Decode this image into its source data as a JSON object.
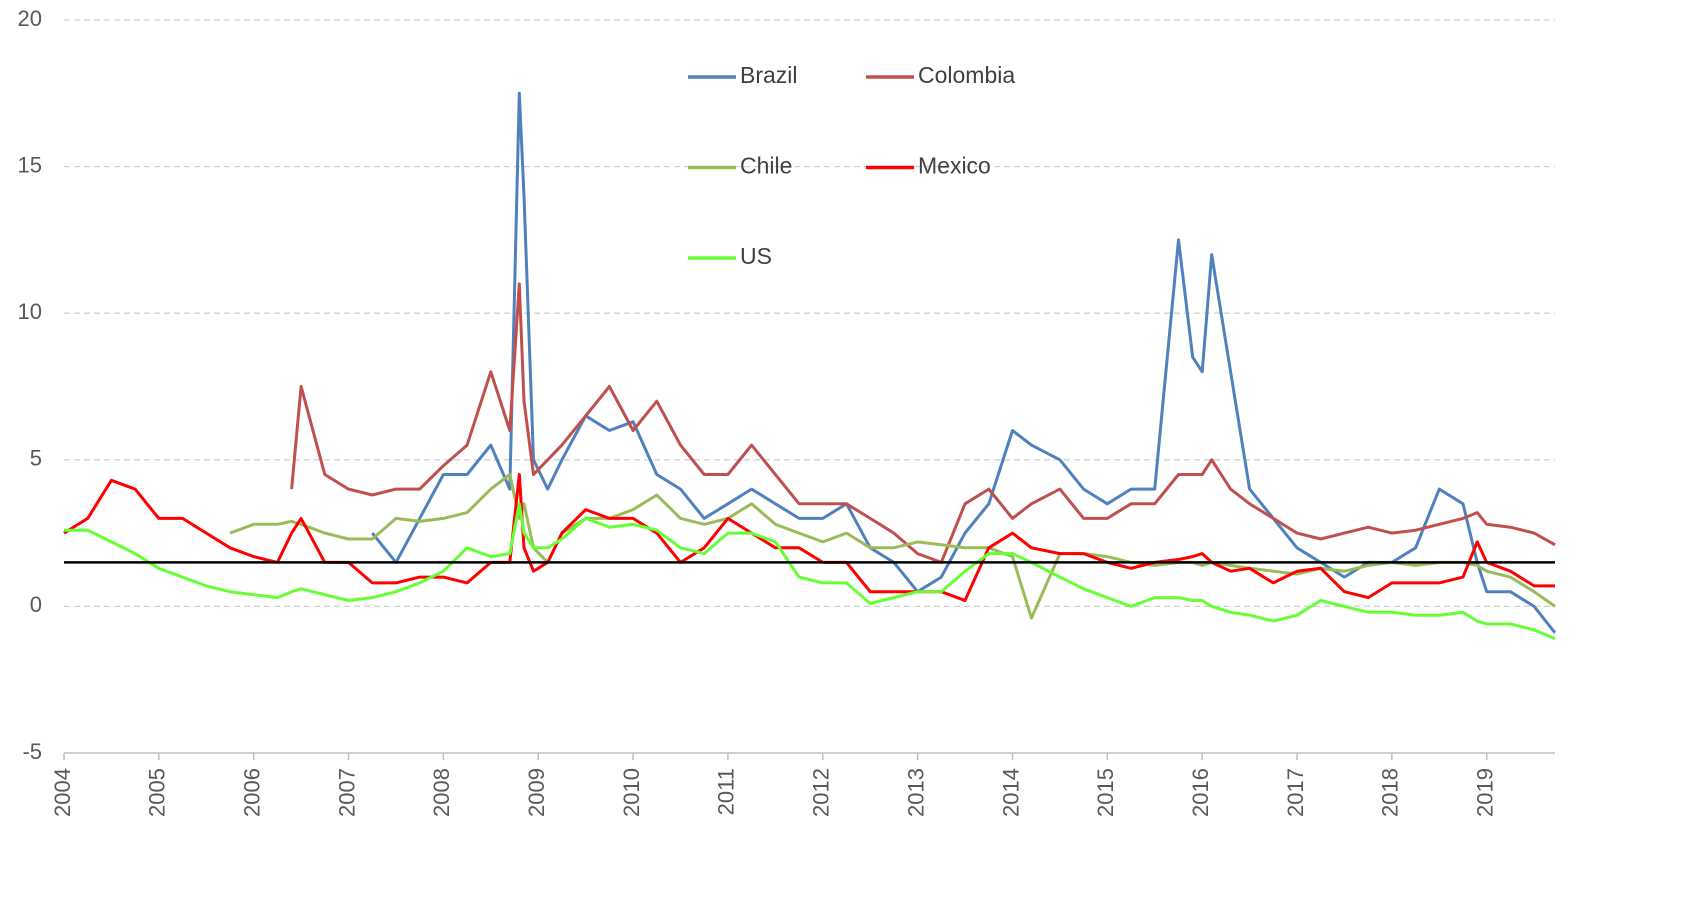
{
  "chart_data": {
    "type": "line",
    "x": [
      2004,
      2004.25,
      2004.5,
      2004.75,
      2005,
      2005.25,
      2005.5,
      2005.75,
      2006,
      2006.25,
      2006.4,
      2006.5,
      2006.75,
      2007,
      2007.25,
      2007.5,
      2007.75,
      2008,
      2008.25,
      2008.5,
      2008.7,
      2008.8,
      2008.85,
      2008.95,
      2009.1,
      2009.25,
      2009.5,
      2009.75,
      2010,
      2010.25,
      2010.5,
      2010.75,
      2011,
      2011.25,
      2011.5,
      2011.75,
      2012,
      2012.25,
      2012.5,
      2012.75,
      2013,
      2013.25,
      2013.5,
      2013.75,
      2014,
      2014.2,
      2014.5,
      2014.75,
      2015,
      2015.25,
      2015.5,
      2015.75,
      2015.9,
      2016,
      2016.1,
      2016.3,
      2016.5,
      2016.75,
      2017,
      2017.25,
      2017.5,
      2017.75,
      2018,
      2018.25,
      2018.5,
      2018.75,
      2018.9,
      2019,
      2019.25,
      2019.5,
      2019.72
    ],
    "series": [
      {
        "name": "Brazil",
        "color": "#4f81bd",
        "values": [
          null,
          null,
          null,
          null,
          null,
          null,
          null,
          null,
          null,
          null,
          null,
          null,
          null,
          null,
          2.5,
          1.5,
          3,
          4.5,
          4.5,
          5.5,
          4,
          17.5,
          14,
          5,
          4,
          5,
          6.5,
          6,
          6.3,
          4.5,
          4,
          3,
          3.5,
          4,
          3.5,
          3,
          3,
          3.5,
          2,
          1.5,
          0.5,
          1,
          2.5,
          3.5,
          6,
          5.5,
          5,
          4,
          3.5,
          4,
          4,
          12.5,
          8.5,
          8,
          12,
          8,
          4,
          3,
          2,
          1.5,
          1,
          1.5,
          1.5,
          2,
          4,
          3.5,
          1.5,
          0.5,
          0.5,
          0,
          -0.9
        ]
      },
      {
        "name": "Colombia",
        "color": "#c0504d",
        "values": [
          null,
          null,
          null,
          null,
          null,
          null,
          null,
          null,
          null,
          null,
          4,
          7.5,
          4.5,
          4,
          3.8,
          4,
          4,
          4.8,
          5.5,
          8,
          6,
          11,
          7,
          4.5,
          5,
          5.5,
          6.5,
          7.5,
          6,
          7,
          5.5,
          4.5,
          4.5,
          5.5,
          4.5,
          3.5,
          3.5,
          3.5,
          3,
          2.5,
          1.8,
          1.5,
          3.5,
          4,
          3,
          3.5,
          4,
          3,
          3,
          3.5,
          3.5,
          4.5,
          4.5,
          4.5,
          5,
          4,
          3.5,
          3,
          2.5,
          2.3,
          2.5,
          2.7,
          2.5,
          2.6,
          2.8,
          3,
          3.2,
          2.8,
          2.7,
          2.5,
          2.1
        ]
      },
      {
        "name": "Chile",
        "color": "#9bbb59",
        "values": [
          null,
          null,
          null,
          null,
          null,
          null,
          null,
          2.5,
          2.8,
          2.8,
          2.9,
          2.8,
          2.5,
          2.3,
          2.3,
          3,
          2.9,
          3,
          3.2,
          4,
          4.5,
          3,
          3.5,
          2,
          1.5,
          2.5,
          3,
          3,
          3.3,
          3.8,
          3,
          2.8,
          3,
          3.5,
          2.8,
          2.5,
          2.2,
          2.5,
          2,
          2,
          2.2,
          2.1,
          2,
          2,
          1.7,
          -0.4,
          1.8,
          1.8,
          1.7,
          1.5,
          1.4,
          1.5,
          1.5,
          1.4,
          1.5,
          1.4,
          1.3,
          1.2,
          1.1,
          1.3,
          1.2,
          1.4,
          1.5,
          1.4,
          1.5,
          1.5,
          1.4,
          1.2,
          1,
          0.5,
          0
        ]
      },
      {
        "name": "Mexico",
        "color": "#ff0000",
        "values": [
          2.5,
          3,
          4.3,
          4,
          3,
          3,
          2.5,
          2,
          1.7,
          1.5,
          2.5,
          3,
          1.5,
          1.5,
          0.8,
          0.8,
          1,
          1,
          0.8,
          1.5,
          1.5,
          4.5,
          2,
          1.2,
          1.5,
          2.5,
          3.3,
          3,
          3,
          2.5,
          1.5,
          2,
          3,
          2.5,
          2,
          2,
          1.5,
          1.5,
          0.5,
          0.5,
          0.5,
          0.5,
          0.2,
          2,
          2.5,
          2,
          1.8,
          1.8,
          1.5,
          1.3,
          1.5,
          1.6,
          1.7,
          1.8,
          1.5,
          1.2,
          1.3,
          0.8,
          1.2,
          1.3,
          0.5,
          0.3,
          0.8,
          0.8,
          0.8,
          1,
          2.2,
          1.5,
          1.2,
          0.7,
          0.7
        ]
      },
      {
        "name": "US",
        "color": "#66ff33",
        "values": [
          2.6,
          2.6,
          2.2,
          1.8,
          1.3,
          1,
          0.7,
          0.5,
          0.4,
          0.3,
          0.5,
          0.6,
          0.4,
          0.2,
          0.3,
          0.5,
          0.8,
          1.2,
          2,
          1.7,
          1.8,
          3.5,
          2.5,
          2,
          2,
          2.3,
          3,
          2.7,
          2.8,
          2.6,
          2,
          1.8,
          2.5,
          2.5,
          2.2,
          1,
          0.8,
          0.8,
          0.1,
          0.3,
          0.5,
          0.5,
          1.2,
          1.8,
          1.8,
          1.5,
          1,
          0.6,
          0.3,
          0,
          0.3,
          0.3,
          0.2,
          0.2,
          0,
          -0.2,
          -0.3,
          -0.5,
          -0.3,
          0.2,
          0,
          -0.2,
          -0.2,
          -0.3,
          -0.3,
          -0.2,
          -0.5,
          -0.6,
          -0.6,
          -0.8,
          -1.1
        ]
      }
    ],
    "xlim": [
      2004,
      2019.72
    ],
    "xticks": [
      2004,
      2005,
      2006,
      2007,
      2008,
      2009,
      2010,
      2011,
      2012,
      2013,
      2014,
      2015,
      2016,
      2017,
      2018,
      2019
    ],
    "ylim": [
      -5,
      20
    ],
    "yticks": [
      -5,
      0,
      5,
      10,
      15,
      20
    ],
    "grid": true,
    "hline": 1.5
  }
}
